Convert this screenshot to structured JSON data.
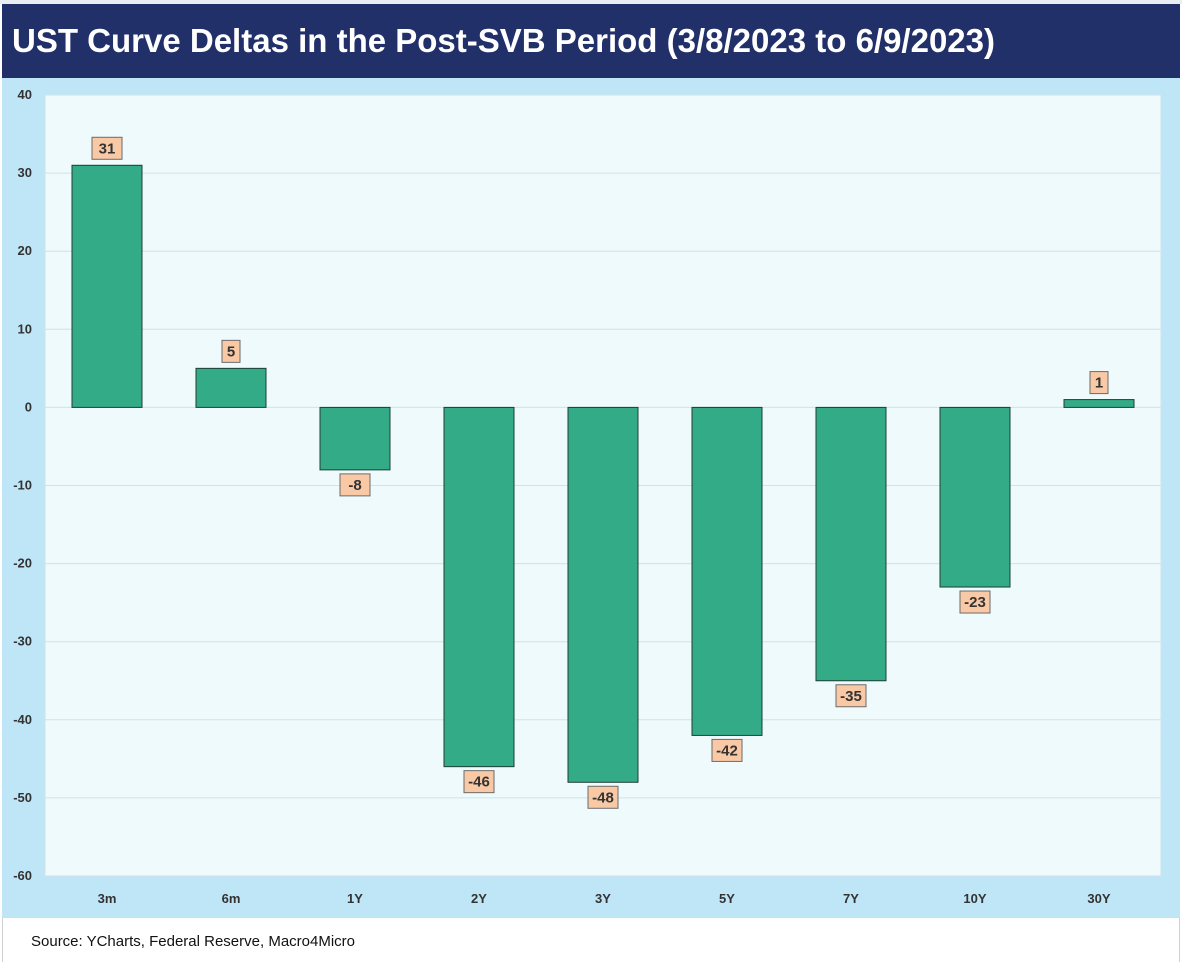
{
  "title": "UST Curve Deltas in the Post-SVB Period (3/8/2023 to 6/9/2023)",
  "source": "Source: YCharts, Federal Reserve, Macro4Micro",
  "colors": {
    "title_bg": "#22306a",
    "outer_bg": "#bfe6f7",
    "plot_bg": "#eefafc",
    "bar_fill": "#34ab87",
    "bar_stroke": "#1e3d33",
    "label_fill": "#f9c9a6",
    "gridline": "#cfe3ea"
  },
  "chart_data": {
    "type": "bar",
    "title": "UST Curve Deltas in the Post-SVB Period (3/8/2023 to 6/9/2023)",
    "categories": [
      "3m",
      "6m",
      "1Y",
      "2Y",
      "3Y",
      "5Y",
      "7Y",
      "10Y",
      "30Y"
    ],
    "values": [
      31,
      5,
      -8,
      -46,
      -48,
      -42,
      -35,
      -23,
      1
    ],
    "data_labels": [
      "31",
      "5",
      "-8",
      "-46",
      "-48",
      "-42",
      "-35",
      "-23",
      "1"
    ],
    "ylim": [
      -60,
      40
    ],
    "yticks": [
      40,
      30,
      20,
      10,
      0,
      -10,
      -20,
      -30,
      -40,
      -50,
      -60
    ],
    "xlabel": "",
    "ylabel": "",
    "grid": true,
    "legend": "none"
  }
}
